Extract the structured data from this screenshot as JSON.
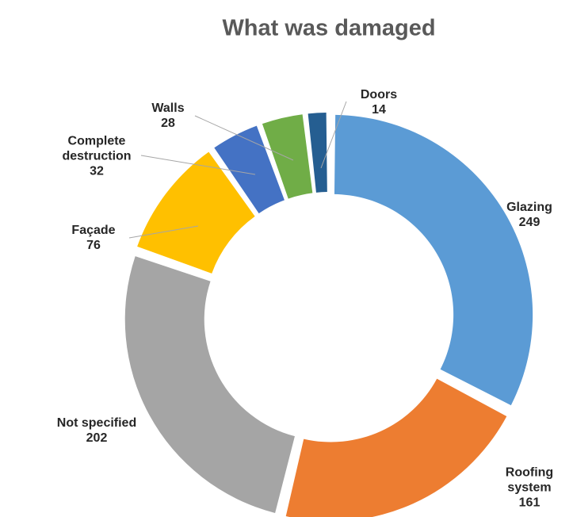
{
  "chart_data": {
    "type": "donut",
    "title": "What was damaged",
    "categories": [
      "Glazing",
      "Roofing system",
      "Not specified",
      "Façade",
      "Complete destruction",
      "Walls",
      "Doors"
    ],
    "values": [
      249,
      161,
      202,
      76,
      32,
      28,
      14
    ],
    "colors": [
      "#5b9bd5",
      "#ed7d31",
      "#a5a5a5",
      "#ffc000",
      "#4472c4",
      "#70ad47",
      "#255e91"
    ]
  }
}
